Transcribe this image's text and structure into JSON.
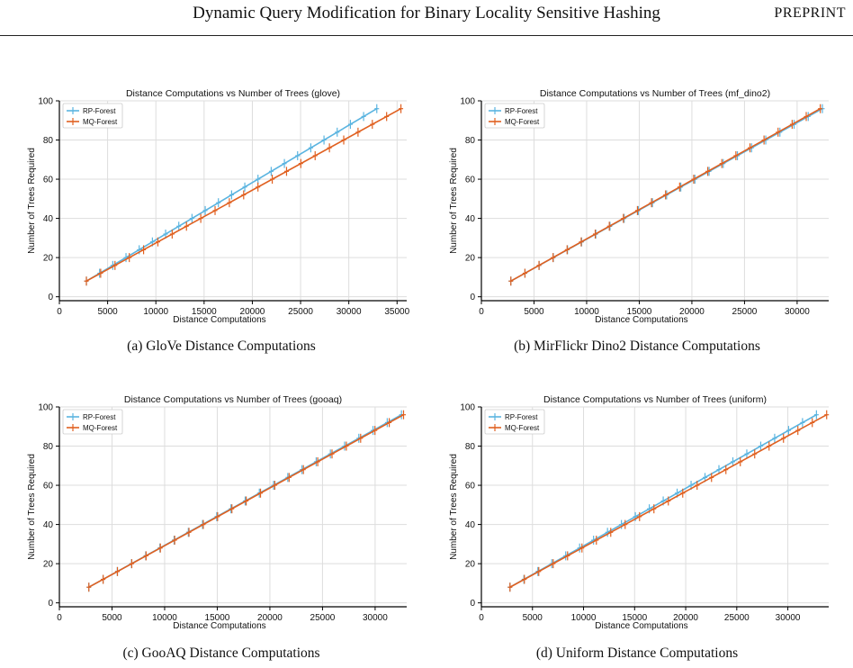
{
  "header": {
    "title": "Dynamic Query Modification for Binary Locality Sensitive Hashing",
    "tag": "PREPRINT"
  },
  "colors": {
    "rp": "#5ab4e0",
    "mq": "#e06020",
    "grid": "#dddddd",
    "axis": "#000000"
  },
  "figures": [
    {
      "caption": "(a) GloVe Distance Computations",
      "chart_data": {
        "type": "line",
        "title": "Distance Computations vs Number of Trees (glove)",
        "xlabel": "Distance Computations",
        "ylabel": "Number of Trees Required",
        "xlim": [
          0,
          36000
        ],
        "ylim": [
          -2,
          100
        ],
        "xticks": [
          0,
          5000,
          10000,
          15000,
          20000,
          25000,
          30000,
          35000
        ],
        "yticks": [
          0,
          20,
          40,
          60,
          80,
          100
        ],
        "grid": true,
        "legend": "top-left",
        "series": [
          {
            "name": "RP-Forest",
            "x": [
              2800,
              32900
            ],
            "y": [
              8,
              96
            ]
          },
          {
            "name": "MQ-Forest",
            "x": [
              2800,
              35400
            ],
            "y": [
              8,
              96
            ]
          }
        ]
      }
    },
    {
      "caption": "(b) MirFlickr Dino2 Distance Computations",
      "chart_data": {
        "type": "line",
        "title": "Distance Computations vs Number of Trees (mf_dino2)",
        "xlabel": "Distance Computations",
        "ylabel": "Number of Trees Required",
        "xlim": [
          0,
          33000
        ],
        "ylim": [
          -2,
          100
        ],
        "xticks": [
          0,
          5000,
          10000,
          15000,
          20000,
          25000,
          30000
        ],
        "yticks": [
          0,
          20,
          40,
          60,
          80,
          100
        ],
        "grid": true,
        "legend": "top-left",
        "series": [
          {
            "name": "RP-Forest",
            "x": [
              2800,
              32400
            ],
            "y": [
              8,
              96
            ]
          },
          {
            "name": "MQ-Forest",
            "x": [
              2800,
              32200
            ],
            "y": [
              8,
              96
            ]
          }
        ]
      }
    },
    {
      "caption": "(c) GooAQ Distance Computations",
      "chart_data": {
        "type": "line",
        "title": "Distance Computations vs Number of Trees (gooaq)",
        "xlabel": "Distance Computations",
        "ylabel": "Number of Trees Required",
        "xlim": [
          0,
          33000
        ],
        "ylim": [
          -2,
          100
        ],
        "xticks": [
          0,
          5000,
          10000,
          15000,
          20000,
          25000,
          30000
        ],
        "yticks": [
          0,
          20,
          40,
          60,
          80,
          100
        ],
        "grid": true,
        "legend": "top-left",
        "series": [
          {
            "name": "RP-Forest",
            "x": [
              2800,
              32500
            ],
            "y": [
              8,
              96
            ]
          },
          {
            "name": "MQ-Forest",
            "x": [
              2800,
              32700
            ],
            "y": [
              8,
              96
            ]
          }
        ]
      }
    },
    {
      "caption": "(d) Uniform Distance Computations",
      "chart_data": {
        "type": "line",
        "title": "Distance Computations vs Number of Trees (uniform)",
        "xlabel": "Distance Computations",
        "ylabel": "Number of Trees Required",
        "xlim": [
          0,
          34000
        ],
        "ylim": [
          -2,
          100
        ],
        "xticks": [
          0,
          5000,
          10000,
          15000,
          20000,
          25000,
          30000
        ],
        "yticks": [
          0,
          20,
          40,
          60,
          80,
          100
        ],
        "grid": true,
        "legend": "top-left",
        "series": [
          {
            "name": "RP-Forest",
            "x": [
              2800,
              32800
            ],
            "y": [
              8,
              96
            ]
          },
          {
            "name": "MQ-Forest",
            "x": [
              2800,
              33800
            ],
            "y": [
              8,
              96
            ]
          }
        ]
      }
    }
  ]
}
